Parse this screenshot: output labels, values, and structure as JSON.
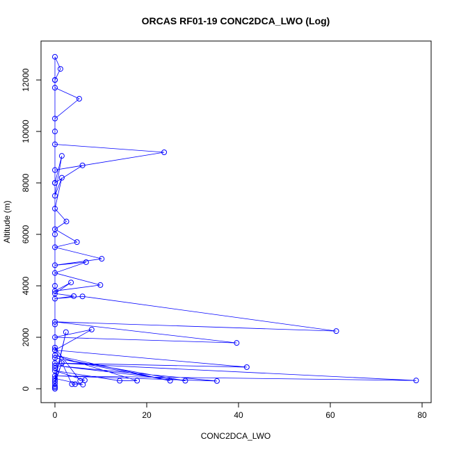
{
  "chart_data": {
    "type": "line",
    "title": "ORCAS RF01-19 CONC2DCA_LWO (Log)",
    "x_label": "CONC2DCA_LWO",
    "y_label": "Altitude (m)",
    "color": "#0000ff",
    "x": [
      0,
      0,
      0,
      0,
      0,
      0,
      0,
      0,
      0,
      0,
      0,
      0,
      1.2,
      0,
      0,
      5.3,
      0,
      0,
      23.8,
      0,
      6,
      0,
      1.5,
      0,
      1.5,
      0,
      2.5,
      0,
      4.8,
      0,
      10.2,
      0,
      6.8,
      0,
      9.9,
      0,
      3.5,
      0,
      4.1,
      0,
      6,
      61.3,
      0,
      39.6,
      0,
      8,
      0,
      41.8,
      0,
      78.7,
      0,
      35.3,
      0,
      28.4,
      0,
      25.1,
      0,
      17.9,
      14.1,
      0,
      6.5,
      5.5,
      0,
      3.7,
      4.4,
      6.1,
      0,
      2.4,
      0,
      1.5,
      0,
      0
    ],
    "values": [
      0,
      50,
      300,
      800,
      1500,
      2500,
      4000,
      6000,
      8000,
      10000,
      12000,
      12900,
      12430,
      12000,
      11700,
      11270,
      10500,
      9500,
      9190,
      8500,
      8680,
      8000,
      9050,
      7500,
      8200,
      7000,
      6500,
      6200,
      5700,
      5500,
      5050,
      4800,
      4920,
      4500,
      4030,
      3800,
      4130,
      3700,
      3600,
      3500,
      3590,
      2240,
      2600,
      1780,
      2000,
      2300,
      1500,
      840,
      1000,
      320,
      500,
      300,
      900,
      310,
      1200,
      310,
      1300,
      310,
      310,
      700,
      330,
      310,
      1600,
      180,
      180,
      160,
      400,
      2200,
      300,
      1000,
      200,
      100
    ],
    "xlim": [
      -3.03,
      81.97
    ],
    "ylim": [
      -540,
      13514
    ],
    "xticks": [
      0,
      20,
      40,
      60,
      80
    ],
    "yticks": [
      0,
      2000,
      4000,
      6000,
      8000,
      10000,
      12000
    ]
  }
}
